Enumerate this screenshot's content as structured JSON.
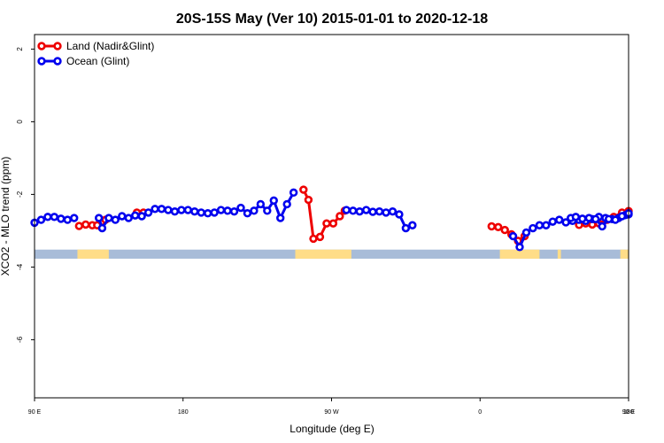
{
  "chart_data": {
    "type": "line",
    "title": "20S-15S May (Ver 10)   2015-01-01 to 2020-12-18",
    "xlabel": "Longitude (deg E)",
    "ylabel": "XCO2 - MLO trend (ppm)",
    "xlim": [
      90,
      450
    ],
    "ylim": [
      -7.6,
      2.4
    ],
    "xticks": [
      {
        "value": 90,
        "label": "90 E"
      },
      {
        "value": 180,
        "label": "180"
      },
      {
        "value": 270,
        "label": "90 W"
      },
      {
        "value": 360,
        "label": "0"
      },
      {
        "value": 450,
        "label": "90 E"
      },
      {
        "value": 540,
        "label": "180"
      }
    ],
    "yticks": [
      {
        "value": 2,
        "label": "2"
      },
      {
        "value": 0,
        "label": "0"
      },
      {
        "value": -2,
        "label": "-2"
      },
      {
        "value": -4,
        "label": "-4"
      },
      {
        "value": -6,
        "label": "-6"
      }
    ],
    "colors": {
      "land": "#ee0000",
      "ocean": "#0000ee",
      "land_band": "#ffdd88",
      "ocean_band": "#a8bcd8"
    },
    "series": [
      {
        "name": "Land (Nadir&Glint)",
        "color": "#ee0000",
        "segments": [
          [
            [
              117,
              -2.87
            ],
            [
              121,
              -2.83
            ],
            [
              125,
              -2.85
            ],
            [
              128,
              -2.85
            ],
            [
              131,
              -2.75
            ],
            [
              133,
              -2.7
            ]
          ],
          [
            [
              152,
              -2.5
            ],
            [
              156,
              -2.5
            ]
          ],
          [
            [
              253,
              -1.87
            ],
            [
              256,
              -2.15
            ],
            [
              259,
              -3.22
            ],
            [
              263,
              -3.17
            ],
            [
              267,
              -2.8
            ],
            [
              271,
              -2.8
            ],
            [
              275,
              -2.6
            ],
            [
              278,
              -2.45
            ]
          ],
          [
            [
              367,
              -2.88
            ],
            [
              371,
              -2.9
            ],
            [
              375,
              -2.98
            ],
            [
              379,
              -3.1
            ],
            [
              383,
              -3.28
            ],
            [
              387,
              -3.15
            ]
          ],
          [
            [
              420,
              -2.84
            ],
            [
              424,
              -2.8
            ],
            [
              428,
              -2.83
            ],
            [
              432,
              -2.8
            ],
            [
              437,
              -2.7
            ],
            [
              441,
              -2.62
            ],
            [
              446,
              -2.5
            ],
            [
              450,
              -2.46
            ]
          ]
        ]
      },
      {
        "name": "Ocean (Glint)",
        "color": "#0000ee",
        "segments": [
          [
            [
              90,
              -2.78
            ],
            [
              94,
              -2.7
            ],
            [
              98,
              -2.62
            ],
            [
              102,
              -2.62
            ],
            [
              106,
              -2.67
            ],
            [
              110,
              -2.7
            ],
            [
              114,
              -2.65
            ]
          ],
          [
            [
              129,
              -2.65
            ],
            [
              131,
              -2.93
            ],
            [
              135,
              -2.65
            ],
            [
              139,
              -2.7
            ],
            [
              143,
              -2.6
            ],
            [
              147,
              -2.65
            ],
            [
              151,
              -2.58
            ],
            [
              155,
              -2.6
            ],
            [
              159,
              -2.5
            ],
            [
              163,
              -2.4
            ],
            [
              167,
              -2.4
            ],
            [
              171,
              -2.43
            ],
            [
              175,
              -2.47
            ],
            [
              179,
              -2.43
            ],
            [
              183,
              -2.43
            ],
            [
              187,
              -2.47
            ],
            [
              191,
              -2.5
            ],
            [
              195,
              -2.52
            ],
            [
              199,
              -2.5
            ],
            [
              203,
              -2.43
            ],
            [
              207,
              -2.45
            ],
            [
              211,
              -2.47
            ],
            [
              215,
              -2.37
            ],
            [
              219,
              -2.52
            ],
            [
              223,
              -2.45
            ],
            [
              227,
              -2.27
            ],
            [
              231,
              -2.45
            ],
            [
              235,
              -2.17
            ],
            [
              239,
              -2.65
            ],
            [
              243,
              -2.27
            ],
            [
              247,
              -1.95
            ]
          ],
          [
            [
              279,
              -2.43
            ],
            [
              283,
              -2.45
            ],
            [
              287,
              -2.47
            ],
            [
              291,
              -2.43
            ],
            [
              295,
              -2.48
            ],
            [
              299,
              -2.47
            ],
            [
              303,
              -2.5
            ],
            [
              307,
              -2.47
            ],
            [
              311,
              -2.55
            ],
            [
              315,
              -2.93
            ],
            [
              319,
              -2.85
            ]
          ],
          [
            [
              380,
              -3.15
            ],
            [
              384,
              -3.45
            ],
            [
              388,
              -3.05
            ],
            [
              392,
              -2.93
            ],
            [
              396,
              -2.85
            ],
            [
              400,
              -2.85
            ],
            [
              404,
              -2.75
            ],
            [
              408,
              -2.7
            ],
            [
              412,
              -2.77
            ],
            [
              416,
              -2.73
            ],
            [
              420,
              -2.7
            ],
            [
              424,
              -2.73
            ],
            [
              428,
              -2.68
            ],
            [
              432,
              -2.62
            ],
            [
              436,
              -2.65
            ],
            [
              440,
              -2.68
            ],
            [
              444,
              -2.65
            ],
            [
              448,
              -2.57
            ],
            [
              450,
              -2.55
            ]
          ],
          [
            [
              415,
              -2.65
            ],
            [
              418,
              -2.62
            ],
            [
              422,
              -2.67
            ],
            [
              426,
              -2.65
            ],
            [
              430,
              -2.68
            ],
            [
              434,
              -2.88
            ],
            [
              438,
              -2.68
            ],
            [
              442,
              -2.7
            ],
            [
              446,
              -2.6
            ],
            [
              450,
              -2.52
            ]
          ]
        ]
      }
    ],
    "land_band_ranges": [
      [
        116,
        135
      ],
      [
        248,
        282
      ],
      [
        372,
        396
      ],
      [
        407,
        409
      ],
      [
        445,
        455
      ]
    ]
  },
  "legend": {
    "land_label": "Land (Nadir&Glint)",
    "ocean_label": "Ocean (Glint)"
  }
}
